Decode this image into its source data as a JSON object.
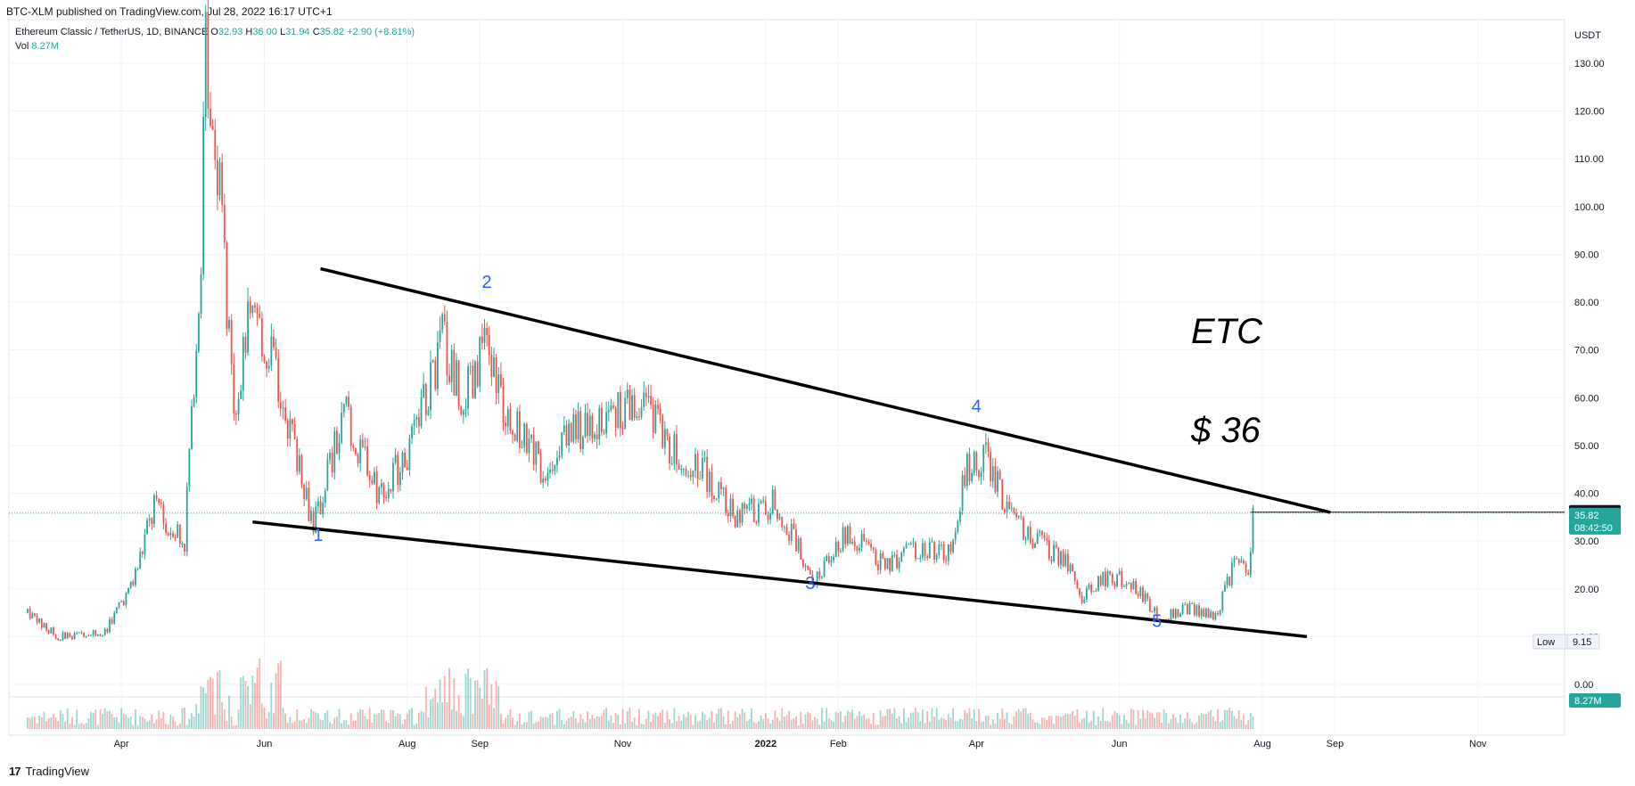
{
  "publisher_line": "BTC-XLM published on TradingView.com, Jul 28, 2022 16:17 UTC+1",
  "symbol": {
    "name": "Ethereum Classic / TetherUS, 1D, BINANCE",
    "o_label": "O",
    "o": "32.93",
    "h_label": "H",
    "h": "36.00",
    "l_label": "L",
    "l": "31.94",
    "c_label": "C",
    "c": "35.82",
    "change": "+2.90 (+8.81%)",
    "vol_label": "Vol",
    "vol": "8.27M"
  },
  "footer": {
    "logo_text": "TradingView",
    "logo_mark": "17"
  },
  "colors": {
    "up": "#26a69a",
    "down": "#ef5350",
    "trendline": "#000000",
    "wave_label": "#2962ff",
    "grid": "#f0f3fa"
  },
  "chart_data": {
    "type": "candlestick",
    "currency": "USDT",
    "y_ticks": [
      "130.00",
      "120.00",
      "110.00",
      "100.00",
      "90.00",
      "80.00",
      "70.00",
      "60.00",
      "50.00",
      "40.00",
      "30.00",
      "20.00",
      "10.00",
      "0.00"
    ],
    "ylim": [
      0,
      140
    ],
    "x_ticks": [
      "Apr",
      "Jun",
      "Aug",
      "Sep",
      "Nov",
      "2022",
      "Feb",
      "Apr",
      "Jun",
      "Aug",
      "Sep",
      "Nov"
    ],
    "x_tick_dates": [
      "2021-04",
      "2021-06",
      "2021-08",
      "2021-09",
      "2021-11",
      "2022-01",
      "2022-02",
      "2022-04",
      "2022-06",
      "2022-08",
      "2022-09",
      "2022-11"
    ],
    "price_path": [
      [
        "2021-02-20",
        15
      ],
      [
        "2021-03-05",
        10
      ],
      [
        "2021-03-25",
        11
      ],
      [
        "2021-04-05",
        20
      ],
      [
        "2021-04-15",
        37
      ],
      [
        "2021-04-28",
        30
      ],
      [
        "2021-05-05",
        90
      ],
      [
        "2021-05-07",
        135
      ],
      [
        "2021-05-12",
        110
      ],
      [
        "2021-05-19",
        55
      ],
      [
        "2021-05-25",
        75
      ],
      [
        "2021-06-05",
        68
      ],
      [
        "2021-06-22",
        33
      ],
      [
        "2021-07-05",
        57
      ],
      [
        "2021-07-20",
        40
      ],
      [
        "2021-08-01",
        48
      ],
      [
        "2021-08-10",
        62
      ],
      [
        "2021-08-16",
        72
      ],
      [
        "2021-08-25",
        60
      ],
      [
        "2021-09-05",
        72
      ],
      [
        "2021-09-10",
        58
      ],
      [
        "2021-09-28",
        45
      ],
      [
        "2021-10-10",
        53
      ],
      [
        "2021-10-25",
        55
      ],
      [
        "2021-11-09",
        60
      ],
      [
        "2021-11-20",
        50
      ],
      [
        "2021-12-05",
        45
      ],
      [
        "2021-12-20",
        35
      ],
      [
        "2022-01-05",
        38
      ],
      [
        "2022-01-22",
        22
      ],
      [
        "2022-02-05",
        32
      ],
      [
        "2022-02-20",
        25
      ],
      [
        "2022-03-05",
        28
      ],
      [
        "2022-03-20",
        28
      ],
      [
        "2022-03-28",
        45
      ],
      [
        "2022-04-05",
        48
      ],
      [
        "2022-04-15",
        35
      ],
      [
        "2022-05-10",
        25
      ],
      [
        "2022-05-15",
        18
      ],
      [
        "2022-05-25",
        22
      ],
      [
        "2022-06-05",
        22
      ],
      [
        "2022-06-18",
        14
      ],
      [
        "2022-07-01",
        16
      ],
      [
        "2022-07-12",
        14
      ],
      [
        "2022-07-20",
        25
      ],
      [
        "2022-07-26",
        24
      ],
      [
        "2022-07-28",
        35.82
      ]
    ],
    "last_price": {
      "price": "35.82",
      "countdown": "08:42:50"
    },
    "high_marker": "36.04",
    "low_marker": {
      "label": "Low",
      "value": "9.15"
    },
    "volume_badge": "8.27M",
    "trendlines": [
      {
        "name": "upper",
        "from": [
          "2021-06-25",
          87
        ],
        "to": [
          "2022-08-30",
          36
        ]
      },
      {
        "name": "lower",
        "from": [
          "2021-05-27",
          34
        ],
        "to": [
          "2022-08-20",
          10
        ]
      }
    ],
    "wave_labels": [
      {
        "text": "1",
        "date": "2021-06-24",
        "price": 30
      },
      {
        "text": "2",
        "date": "2021-09-04",
        "price": 83
      },
      {
        "text": "3",
        "date": "2022-01-20",
        "price": 20
      },
      {
        "text": "4",
        "date": "2022-04-01",
        "price": 57
      },
      {
        "text": "5",
        "date": "2022-06-17",
        "price": 12
      }
    ],
    "annotations": [
      "ETC",
      "$ 36"
    ]
  }
}
